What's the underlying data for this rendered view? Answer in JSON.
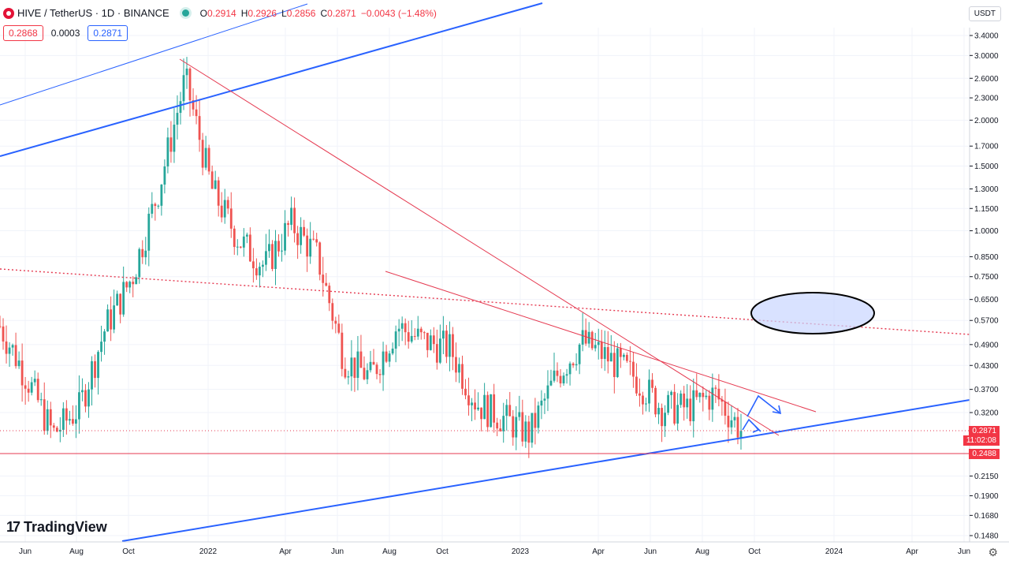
{
  "header": {
    "symbol": "HIVE / TetherUS · 1D · BINANCE",
    "o_label": "O",
    "o": "0.2914",
    "h_label": "H",
    "h": "0.2926",
    "l_label": "L",
    "l": "0.2856",
    "c_label": "C",
    "c": "0.2871",
    "change": "−0.0043 (−1.48%)",
    "bid": "0.2868",
    "spread": "0.0003",
    "ask": "0.2871",
    "currency": "USDT"
  },
  "branding": {
    "name": "TradingView",
    "mark": "17"
  },
  "price_labels": {
    "last": "0.2871",
    "countdown": "11:02:08",
    "support": "0.2488"
  },
  "colors": {
    "bull": "#26a69a",
    "bear": "#ef5350",
    "trend_blue": "#2962ff",
    "trend_red": "#e53950"
  },
  "chart_data": {
    "type": "candlestick",
    "title": "HIVE / TetherUS · 1D · BINANCE",
    "scale": "log",
    "y_ticks": [
      "3.4000",
      "3.0000",
      "2.6000",
      "2.3000",
      "2.0000",
      "1.7000",
      "1.5000",
      "1.3000",
      "1.1500",
      "1.0000",
      "0.8500",
      "0.7500",
      "0.6500",
      "0.5700",
      "0.4900",
      "0.4300",
      "0.3700",
      "0.3200",
      "0.2150",
      "0.1900",
      "0.1680",
      "0.1480"
    ],
    "x_ticks": [
      "Jun",
      "Aug",
      "Oct",
      "2022",
      "Apr",
      "Jun",
      "Aug",
      "Oct",
      "2023",
      "Apr",
      "Jun",
      "Aug",
      "Oct",
      "2024",
      "Apr",
      "Jun"
    ],
    "series": [
      {
        "dates": [
          "2021-05",
          "2021-06",
          "2021-07",
          "2021-08",
          "2021-09",
          "2021-10",
          "2021-11",
          "2021-12",
          "2022-01",
          "2022-02",
          "2022-03",
          "2022-04",
          "2022-05",
          "2022-06",
          "2022-07",
          "2022-08",
          "2022-09",
          "2022-10",
          "2022-11",
          "2022-12",
          "2023-01",
          "2023-02",
          "2023-03",
          "2023-04",
          "2023-05",
          "2023-06",
          "2023-07",
          "2023-08",
          "2023-09"
        ],
        "values": [
          0.55,
          0.4,
          0.28,
          0.33,
          0.55,
          0.75,
          1.3,
          2.6,
          1.3,
          0.95,
          0.8,
          1.05,
          0.85,
          0.45,
          0.4,
          0.55,
          0.5,
          0.48,
          0.34,
          0.31,
          0.28,
          0.4,
          0.5,
          0.45,
          0.4,
          0.33,
          0.33,
          0.36,
          0.2871
        ]
      }
    ],
    "annotations": [
      {
        "type": "horizontal_line",
        "price": 0.2488
      },
      {
        "type": "horizontal_line_dotted",
        "price": 0.2871
      }
    ]
  }
}
